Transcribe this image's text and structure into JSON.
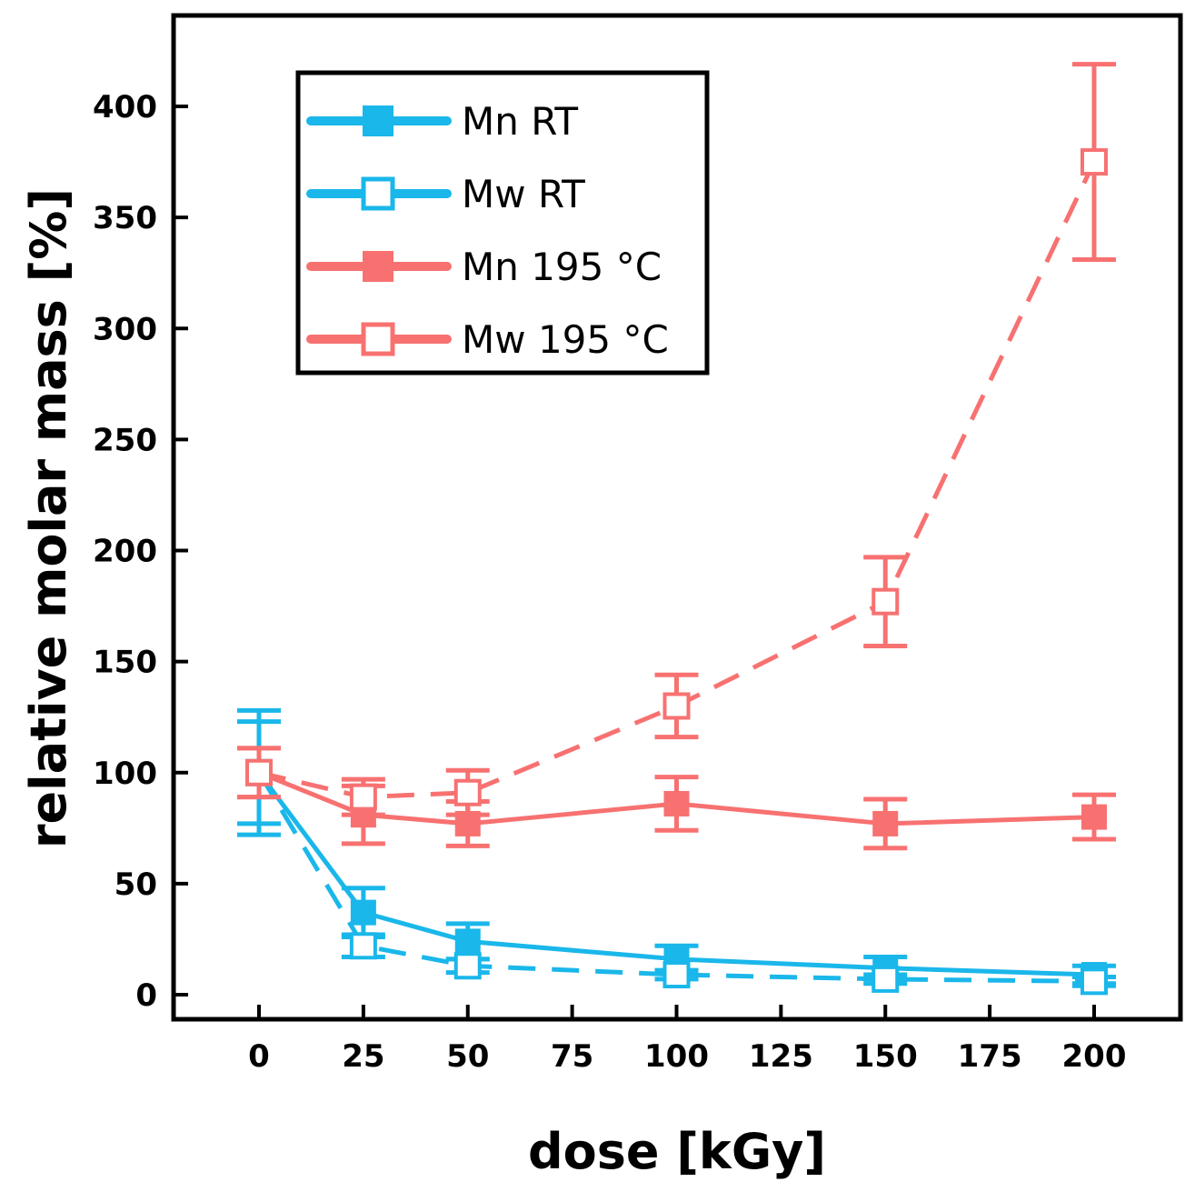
{
  "chart_data": {
    "type": "line",
    "title": "",
    "xlabel": "dose [kGy]",
    "ylabel": "relative molar mass [%]",
    "xlim": [
      -20,
      215
    ],
    "ylim": [
      -12,
      432
    ],
    "x_ticks": [
      0,
      25,
      50,
      75,
      100,
      125,
      150,
      175,
      200
    ],
    "y_ticks": [
      0,
      50,
      100,
      150,
      200,
      250,
      300,
      350,
      400
    ],
    "x_tick_labels": [
      "0",
      "25",
      "50",
      "75",
      "100",
      "125",
      "150",
      "175",
      "200"
    ],
    "y_tick_labels": [
      "0",
      "50",
      "100",
      "150",
      "200",
      "250",
      "300",
      "350",
      "400"
    ],
    "legend_position": "top-left",
    "series": [
      {
        "name": "Mn RT",
        "color": "#1ab7ea",
        "marker": "filled-square",
        "line": "solid",
        "x": [
          0,
          25,
          50,
          100,
          150,
          200
        ],
        "values": [
          100,
          37,
          24,
          16,
          12,
          9
        ],
        "errors": [
          28,
          11,
          8,
          6,
          5,
          4
        ]
      },
      {
        "name": "Mw RT",
        "color": "#1ab7ea",
        "marker": "open-square",
        "line": "dashed",
        "x": [
          0,
          25,
          50,
          100,
          150,
          200
        ],
        "values": [
          100,
          22,
          13,
          9,
          7,
          6
        ],
        "errors": [
          23,
          5,
          3,
          2,
          2,
          2
        ]
      },
      {
        "name": "Mn 195 °C",
        "color": "#f87171",
        "marker": "filled-square",
        "line": "solid",
        "x": [
          0,
          25,
          50,
          100,
          150,
          200
        ],
        "values": [
          100,
          81,
          77,
          86,
          77,
          80
        ],
        "errors": [
          11,
          13,
          10,
          12,
          11,
          10
        ]
      },
      {
        "name": "Mw 195 °C",
        "color": "#f87171",
        "marker": "open-square",
        "line": "dashed",
        "x": [
          0,
          25,
          50,
          100,
          150,
          200
        ],
        "values": [
          100,
          89,
          91,
          130,
          177,
          375
        ],
        "errors": [
          11,
          8,
          10,
          14,
          20,
          44
        ]
      }
    ]
  }
}
